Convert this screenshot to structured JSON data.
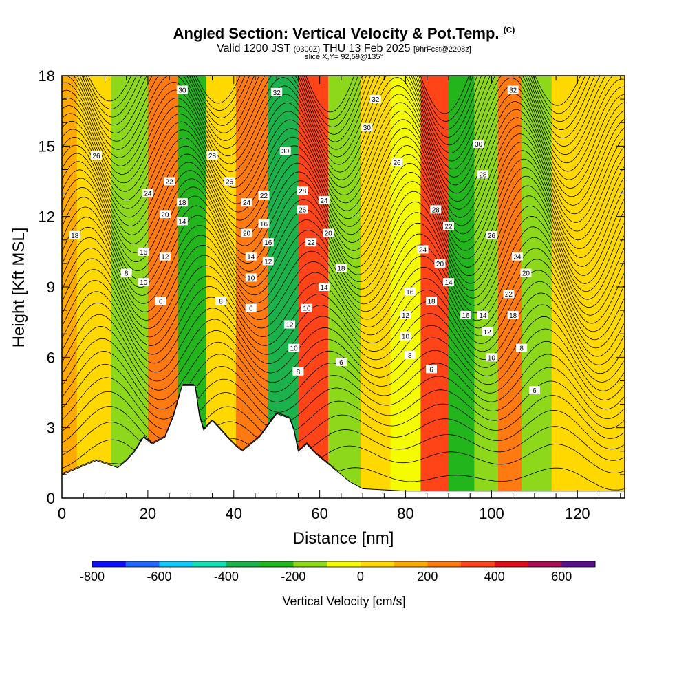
{
  "header": {
    "title": "Angled Section: Vertical Velocity & Pot.Temp.",
    "title_mark": "(C)",
    "subtitle_a": "Valid 1200 JST",
    "subtitle_b": "(0300Z)",
    "subtitle_c": "THU 13 Feb 2025",
    "subtitle_d": "[9hrFcst@2208z]",
    "slice": "slice X,Y= 92,59@135°"
  },
  "chart_data": {
    "type": "heatmap",
    "xlabel": "Distance [nm]",
    "ylabel": "Height [Kft MSL]",
    "xlim": [
      0,
      131
    ],
    "ylim": [
      0,
      18
    ],
    "x_ticks": [
      "0",
      "20",
      "40",
      "60",
      "80",
      "100",
      "120"
    ],
    "y_ticks": [
      "0",
      "3",
      "6",
      "9",
      "12",
      "15",
      "18"
    ],
    "colorbar": {
      "label": "Vertical Velocity [cm/s]",
      "levels": [
        -800,
        -700,
        -600,
        -500,
        -400,
        -300,
        -200,
        -100,
        0,
        100,
        200,
        300,
        400,
        500,
        600,
        700
      ],
      "tick_labels": [
        "-800",
        "-600",
        "-400",
        "-200",
        "0",
        "200",
        "400",
        "600"
      ],
      "colors": [
        "#0f0fff",
        "#1f67ff",
        "#11c8ff",
        "#17dfb4",
        "#1bb24c",
        "#22b51c",
        "#8ed81c",
        "#f6fc00",
        "#ffd800",
        "#ffaa00",
        "#ff7a10",
        "#ff4418",
        "#e0101a",
        "#a80f50",
        "#5c0f8c"
      ]
    },
    "vertical_velocity_bands": [
      {
        "x": 0,
        "w_cms": 150
      },
      {
        "x": 7,
        "w_cms": 80
      },
      {
        "x": 16,
        "w_cms": -200
      },
      {
        "x": 24,
        "w_cms": 250
      },
      {
        "x": 30,
        "w_cms": -250
      },
      {
        "x": 37,
        "w_cms": 80
      },
      {
        "x": 44,
        "w_cms": 250
      },
      {
        "x": 52,
        "w_cms": -380
      },
      {
        "x": 58,
        "w_cms": 350
      },
      {
        "x": 66,
        "w_cms": -150
      },
      {
        "x": 73,
        "w_cms": 80
      },
      {
        "x": 80,
        "w_cms": -50
      },
      {
        "x": 87,
        "w_cms": 300
      },
      {
        "x": 93,
        "w_cms": -250
      },
      {
        "x": 99,
        "w_cms": -180
      },
      {
        "x": 104,
        "w_cms": 250
      },
      {
        "x": 110,
        "w_cms": -120
      },
      {
        "x": 118,
        "w_cms": 50
      },
      {
        "x": 131,
        "w_cms": 80
      }
    ],
    "terrain_profile": [
      {
        "x": 0,
        "h": 1.0
      },
      {
        "x": 4,
        "h": 1.3
      },
      {
        "x": 8,
        "h": 1.6
      },
      {
        "x": 13,
        "h": 1.3
      },
      {
        "x": 15,
        "h": 1.6
      },
      {
        "x": 17,
        "h": 2.0
      },
      {
        "x": 19,
        "h": 2.6
      },
      {
        "x": 21,
        "h": 2.3
      },
      {
        "x": 24,
        "h": 2.6
      },
      {
        "x": 26,
        "h": 3.5
      },
      {
        "x": 28,
        "h": 4.8
      },
      {
        "x": 31,
        "h": 4.8
      },
      {
        "x": 32,
        "h": 3.5
      },
      {
        "x": 33,
        "h": 2.9
      },
      {
        "x": 35,
        "h": 3.3
      },
      {
        "x": 37,
        "h": 2.9
      },
      {
        "x": 40,
        "h": 2.3
      },
      {
        "x": 42,
        "h": 2.0
      },
      {
        "x": 44,
        "h": 2.3
      },
      {
        "x": 46,
        "h": 2.6
      },
      {
        "x": 48,
        "h": 3.1
      },
      {
        "x": 50,
        "h": 3.6
      },
      {
        "x": 53,
        "h": 3.4
      },
      {
        "x": 54,
        "h": 2.9
      },
      {
        "x": 55,
        "h": 2.0
      },
      {
        "x": 57,
        "h": 2.3
      },
      {
        "x": 59,
        "h": 1.9
      },
      {
        "x": 61,
        "h": 1.6
      },
      {
        "x": 63,
        "h": 1.3
      },
      {
        "x": 65,
        "h": 1.0
      },
      {
        "x": 67,
        "h": 0.7
      },
      {
        "x": 70,
        "h": 0.4
      },
      {
        "x": 80,
        "h": 0.3
      },
      {
        "x": 131,
        "h": 0.3
      }
    ],
    "theta_contour_labels": [
      {
        "x": 28,
        "y": 17.4,
        "t": "30"
      },
      {
        "x": 50,
        "y": 17.3,
        "t": "32"
      },
      {
        "x": 73,
        "y": 17.0,
        "t": "32"
      },
      {
        "x": 105,
        "y": 17.4,
        "t": "32"
      },
      {
        "x": 71,
        "y": 15.8,
        "t": "30"
      },
      {
        "x": 97,
        "y": 15.1,
        "t": "30"
      },
      {
        "x": 52,
        "y": 14.8,
        "t": "30"
      },
      {
        "x": 35,
        "y": 14.6,
        "t": "28"
      },
      {
        "x": 8,
        "y": 14.6,
        "t": "26"
      },
      {
        "x": 78,
        "y": 14.3,
        "t": "26"
      },
      {
        "x": 98,
        "y": 13.8,
        "t": "28"
      },
      {
        "x": 39,
        "y": 13.5,
        "t": "26"
      },
      {
        "x": 25,
        "y": 13.5,
        "t": "22"
      },
      {
        "x": 20,
        "y": 13.0,
        "t": "24"
      },
      {
        "x": 56,
        "y": 13.1,
        "t": "28"
      },
      {
        "x": 47,
        "y": 12.9,
        "t": "22"
      },
      {
        "x": 28,
        "y": 12.6,
        "t": "18"
      },
      {
        "x": 61,
        "y": 12.7,
        "t": "24"
      },
      {
        "x": 43,
        "y": 12.6,
        "t": "24"
      },
      {
        "x": 56,
        "y": 12.3,
        "t": "26"
      },
      {
        "x": 87,
        "y": 12.3,
        "t": "28"
      },
      {
        "x": 24,
        "y": 12.1,
        "t": "20"
      },
      {
        "x": 28,
        "y": 11.8,
        "t": "14"
      },
      {
        "x": 90,
        "y": 11.6,
        "t": "22"
      },
      {
        "x": 47,
        "y": 11.7,
        "t": "16"
      },
      {
        "x": 43,
        "y": 11.3,
        "t": "20"
      },
      {
        "x": 62,
        "y": 11.3,
        "t": "20"
      },
      {
        "x": 100,
        "y": 11.2,
        "t": "26"
      },
      {
        "x": 3,
        "y": 11.2,
        "t": "18"
      },
      {
        "x": 48,
        "y": 10.9,
        "t": "16"
      },
      {
        "x": 58,
        "y": 10.9,
        "t": "22"
      },
      {
        "x": 84,
        "y": 10.6,
        "t": "24"
      },
      {
        "x": 19,
        "y": 10.5,
        "t": "16"
      },
      {
        "x": 24,
        "y": 10.3,
        "t": "12"
      },
      {
        "x": 44,
        "y": 10.3,
        "t": "14"
      },
      {
        "x": 48,
        "y": 10.1,
        "t": "12"
      },
      {
        "x": 106,
        "y": 10.3,
        "t": "24"
      },
      {
        "x": 88,
        "y": 10.0,
        "t": "20"
      },
      {
        "x": 65,
        "y": 9.8,
        "t": "18"
      },
      {
        "x": 15,
        "y": 9.6,
        "t": "8"
      },
      {
        "x": 108,
        "y": 9.6,
        "t": "20"
      },
      {
        "x": 44,
        "y": 9.4,
        "t": "10"
      },
      {
        "x": 90,
        "y": 9.2,
        "t": "14"
      },
      {
        "x": 19,
        "y": 9.2,
        "t": "10"
      },
      {
        "x": 61,
        "y": 9.0,
        "t": "14"
      },
      {
        "x": 81,
        "y": 8.8,
        "t": "16"
      },
      {
        "x": 104,
        "y": 8.7,
        "t": "22"
      },
      {
        "x": 23,
        "y": 8.4,
        "t": "6"
      },
      {
        "x": 37,
        "y": 8.4,
        "t": "8"
      },
      {
        "x": 86,
        "y": 8.4,
        "t": "18"
      },
      {
        "x": 57,
        "y": 8.1,
        "t": "16"
      },
      {
        "x": 44,
        "y": 8.1,
        "t": "6"
      },
      {
        "x": 94,
        "y": 7.8,
        "t": "16"
      },
      {
        "x": 98,
        "y": 7.8,
        "t": "14"
      },
      {
        "x": 105,
        "y": 7.8,
        "t": "18"
      },
      {
        "x": 80,
        "y": 7.8,
        "t": "12"
      },
      {
        "x": 53,
        "y": 7.4,
        "t": "12"
      },
      {
        "x": 99,
        "y": 7.1,
        "t": "12"
      },
      {
        "x": 80,
        "y": 6.9,
        "t": "10"
      },
      {
        "x": 54,
        "y": 6.4,
        "t": "10"
      },
      {
        "x": 107,
        "y": 6.4,
        "t": "8"
      },
      {
        "x": 81,
        "y": 6.1,
        "t": "8"
      },
      {
        "x": 100,
        "y": 6.0,
        "t": "10"
      },
      {
        "x": 65,
        "y": 5.8,
        "t": "6"
      },
      {
        "x": 86,
        "y": 5.5,
        "t": "6"
      },
      {
        "x": 55,
        "y": 5.4,
        "t": "8"
      },
      {
        "x": 110,
        "y": 4.6,
        "t": "6"
      }
    ]
  }
}
